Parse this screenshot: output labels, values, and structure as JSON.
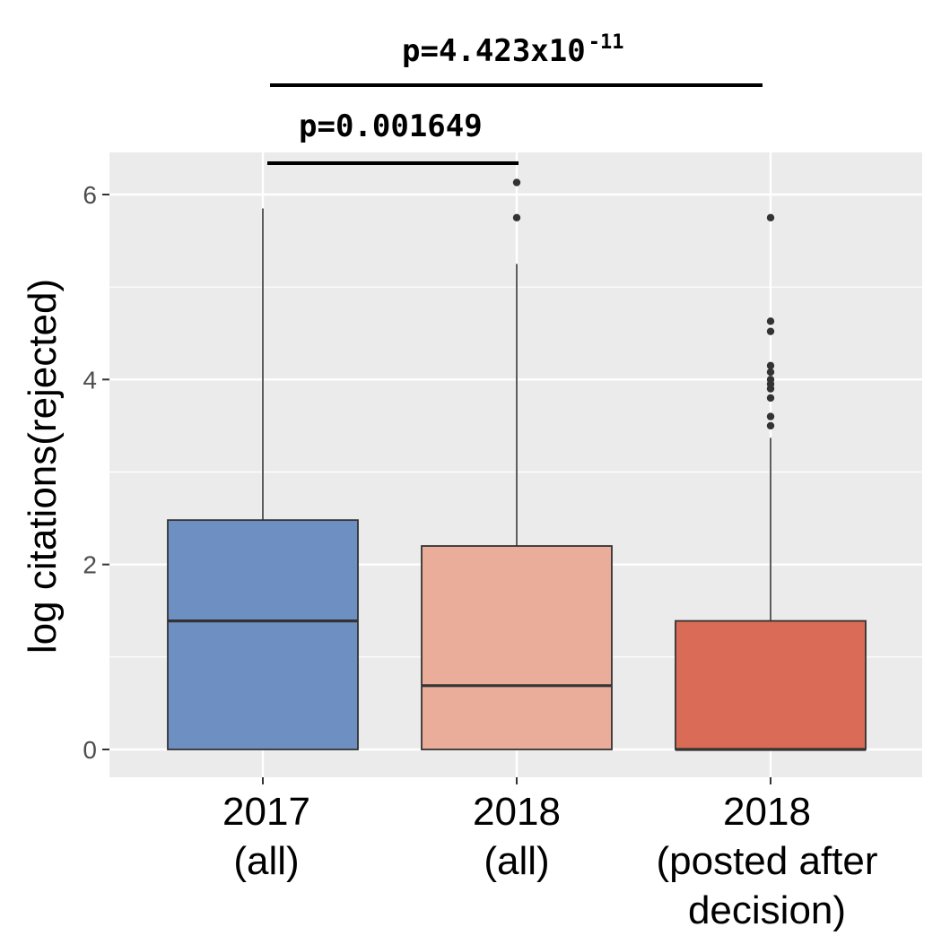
{
  "chart_data": {
    "type": "boxplot",
    "ylabel": "log citations(rejected)",
    "xlabel": "",
    "ylim": [
      -0.3,
      6.4
    ],
    "yticks": [
      0,
      2,
      4,
      6
    ],
    "grid": true,
    "categories": [
      {
        "lines": [
          "2017",
          "(all)"
        ]
      },
      {
        "lines": [
          "2018",
          "(all)"
        ]
      },
      {
        "lines": [
          "2018",
          "(posted after",
          "decision)"
        ]
      }
    ],
    "boxes": [
      {
        "name": "2017 (all)",
        "color": "#6e8fc2",
        "min": 0,
        "q1": 0,
        "median": 1.39,
        "q3": 2.48,
        "max": 5.85,
        "outliers": []
      },
      {
        "name": "2018 (all)",
        "color": "#e9ad9a",
        "min": 0,
        "q1": 0,
        "median": 0.69,
        "q3": 2.2,
        "max": 5.25,
        "outliers": [
          5.75,
          6.13
        ]
      },
      {
        "name": "2018 (posted after decision)",
        "color": "#d96b57",
        "min": 0,
        "q1": 0,
        "median": 0,
        "q3": 1.39,
        "max": 3.37,
        "outliers": [
          3.5,
          3.6,
          3.8,
          3.9,
          3.95,
          4.0,
          4.08,
          4.15,
          4.52,
          4.63,
          5.75
        ]
      }
    ],
    "annotations": [
      {
        "from": 0,
        "to": 1,
        "text": "p=0.001649",
        "exponent": ""
      },
      {
        "from": 0,
        "to": 2,
        "text": "p=4.423x10",
        "exponent": "-11"
      }
    ]
  },
  "colors": {
    "panel_background": "#ebebeb",
    "grid": "#ffffff",
    "box_outline": "#333333",
    "outlier": "#333333"
  }
}
